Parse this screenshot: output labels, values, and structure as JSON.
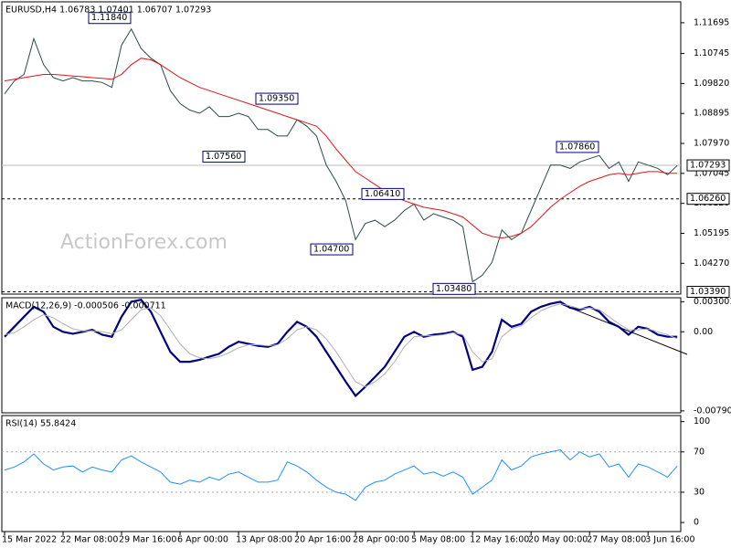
{
  "chart_data": [
    {
      "type": "line",
      "title": "EURUSD,H4 1.06783 1.07401 1.06707 1.07293",
      "watermark": "ActionForex.com",
      "categories": [
        "15 Mar 2022",
        null,
        null,
        null,
        null,
        null,
        "22 Mar 08:00",
        null,
        null,
        null,
        null,
        null,
        "29 Mar 16:00",
        null,
        null,
        null,
        null,
        null,
        "6 Apr 00:00",
        null,
        null,
        null,
        null,
        null,
        "13 Apr 08:00",
        null,
        null,
        null,
        null,
        null,
        "20 Apr 16:00",
        null,
        null,
        null,
        null,
        null,
        "28 Apr 00:00",
        null,
        null,
        null,
        null,
        null,
        "5 May 08:00",
        null,
        null,
        null,
        null,
        null,
        "12 May 16:00",
        null,
        null,
        null,
        null,
        null,
        "20 May 00:00",
        null,
        null,
        null,
        null,
        null,
        "27 May 08:00",
        null,
        null,
        null,
        null,
        null,
        "3 Jun 16:00",
        null,
        null,
        null
      ],
      "series": [
        {
          "color": "#2b4a4a",
          "values": [
            1.095,
            1.099,
            1.101,
            1.112,
            1.104,
            1.1,
            1.099,
            1.1,
            1.099,
            1.099,
            1.0985,
            1.097,
            1.11,
            1.115,
            1.109,
            1.106,
            1.104,
            1.096,
            1.092,
            1.09,
            1.089,
            1.091,
            1.088,
            1.088,
            1.089,
            1.088,
            1.084,
            1.084,
            1.082,
            1.082,
            1.087,
            1.085,
            1.082,
            1.073,
            1.068,
            1.062,
            1.05,
            1.055,
            1.056,
            1.054,
            1.056,
            1.059,
            1.061,
            1.056,
            1.058,
            1.057,
            1.056,
            1.054,
            1.037,
            1.039,
            1.043,
            1.053,
            1.05,
            1.052,
            1.059,
            1.066,
            1.073,
            1.073,
            1.072,
            1.074,
            1.075,
            1.076,
            1.072,
            1.074,
            1.068,
            1.074,
            1.073,
            1.072,
            1.07,
            1.0729
          ]
        },
        {
          "color": "#e0151b",
          "values": [
            1.099,
            1.0995,
            1.1,
            1.1005,
            1.101,
            1.101,
            1.1008,
            1.1005,
            1.1003,
            1.1,
            1.0998,
            1.0995,
            1.101,
            1.104,
            1.106,
            1.1055,
            1.104,
            1.102,
            1.1,
            1.0985,
            1.097,
            1.096,
            1.095,
            1.094,
            1.093,
            1.092,
            1.091,
            1.09,
            1.089,
            1.088,
            1.087,
            1.086,
            1.085,
            1.082,
            1.078,
            1.0745,
            1.071,
            1.069,
            1.067,
            1.065,
            1.0635,
            1.062,
            1.061,
            1.06,
            1.0595,
            1.059,
            1.058,
            1.057,
            1.0545,
            1.052,
            1.051,
            1.0505,
            1.051,
            1.052,
            1.054,
            1.057,
            1.06,
            1.0625,
            1.0645,
            1.0665,
            1.068,
            1.069,
            1.07,
            1.0705,
            1.07,
            1.0705,
            1.071,
            1.071,
            1.0705,
            1.0705
          ]
        }
      ],
      "ylim": [
        1.0332,
        1.1234
      ],
      "yticks": [
        1.11695,
        1.10745,
        {
          "value": 1.0982,
          "label": "1.09820"
        },
        1.08895,
        {
          "value": 1.0797,
          "label": "1.07970"
        },
        1.07045,
        {
          "value": 1.0612,
          "label": "1.06120"
        },
        1.05195,
        {
          "value": 1.0427,
          "label": "1.04270"
        }
      ],
      "levels": [
        {
          "value": 1.0626,
          "label": "1.06260"
        },
        {
          "value": 1.0339,
          "label": "1.03390"
        }
      ],
      "last_price": {
        "value": 1.07293,
        "label": "1.07293"
      },
      "annotations": [
        {
          "value": 1.1184,
          "label": "1.11840"
        },
        {
          "value": 1.0935,
          "label": "1.09350"
        },
        {
          "value": 1.0756,
          "label": "1.07560"
        },
        {
          "value": 1.0641,
          "label": "1.06410"
        },
        {
          "value": 1.047,
          "label": "1.04700"
        },
        {
          "value": 1.0348,
          "label": "1.03480"
        },
        {
          "value": 1.0786,
          "label": "1.07860"
        }
      ]
    },
    {
      "type": "line",
      "title": "MACD(12,26,9) -0.000506 -0.000711",
      "series": [
        {
          "color": "#000080",
          "values": [
            -0.0005,
            0.0005,
            0.0015,
            0.0025,
            0.002,
            0.0005,
            0,
            -0.0002,
            0,
            0.0002,
            -0.0003,
            -0.0005,
            0.0015,
            0.003,
            0.0032,
            0.002,
            0,
            -0.002,
            -0.003,
            -0.003,
            -0.0028,
            -0.0025,
            -0.0022,
            -0.0015,
            -0.001,
            -0.0012,
            -0.0014,
            -0.0015,
            -0.0012,
            0,
            0.001,
            0.0005,
            -0.0005,
            -0.002,
            -0.0035,
            -0.005,
            -0.0064,
            -0.0055,
            -0.0045,
            -0.0035,
            -0.002,
            -0.0005,
            0,
            -0.0005,
            -0.0003,
            -0.0002,
            0,
            -0.0005,
            -0.0038,
            -0.0035,
            -0.002,
            0.0012,
            0.0005,
            0.0008,
            0.002,
            0.0025,
            0.0028,
            0.003,
            0.0024,
            0.0022,
            0.0025,
            0.002,
            0.001,
            0.0005,
            -0.0003,
            0.0005,
            0.0003,
            -0.0003,
            -0.0005,
            -0.0005
          ]
        },
        {
          "color": "#b0b0b0",
          "values": [
            -0.0003,
            -0.0001,
            0.0005,
            0.0012,
            0.0017,
            0.0014,
            0.0008,
            0.0003,
            0.0001,
            0.0001,
            0,
            -0.0002,
            0.0002,
            0.0012,
            0.0022,
            0.0024,
            0.0016,
            0.0002,
            -0.0012,
            -0.0022,
            -0.0026,
            -0.0027,
            -0.0025,
            -0.0021,
            -0.0016,
            -0.0013,
            -0.0013,
            -0.0014,
            -0.0013,
            -0.0007,
            0.0002,
            0.0005,
            0.0002,
            -0.0007,
            -0.002,
            -0.0035,
            -0.005,
            -0.0055,
            -0.005,
            -0.0042,
            -0.003,
            -0.0015,
            -0.0005,
            -0.0004,
            -0.0004,
            -0.0003,
            -0.0001,
            -0.0003,
            -0.002,
            -0.003,
            -0.0027,
            -0.0005,
            0.0003,
            0.0006,
            0.0014,
            0.0021,
            0.0025,
            0.0028,
            0.0026,
            0.0023,
            0.0024,
            0.0022,
            0.0015,
            0.0008,
            0.0002,
            0.0002,
            0.0003,
            0,
            -0.0003,
            -0.0007
          ]
        }
      ],
      "ylim": [
        -0.0081,
        0.0034
      ],
      "yticks": [
        0.0030012,
        {
          "value": 0,
          "label": "0.00"
        },
        -0.007907
      ]
    },
    {
      "type": "line",
      "title": "RSI(14) 55.8424",
      "series": [
        {
          "color": "#1e90ff",
          "values": [
            52,
            55,
            60,
            68,
            58,
            52,
            55,
            56,
            50,
            55,
            52,
            50,
            62,
            66,
            60,
            55,
            50,
            40,
            38,
            42,
            40,
            45,
            42,
            48,
            50,
            45,
            40,
            40,
            42,
            60,
            56,
            50,
            42,
            35,
            30,
            28,
            22,
            35,
            40,
            42,
            48,
            52,
            56,
            48,
            50,
            46,
            50,
            45,
            28,
            35,
            42,
            62,
            52,
            56,
            65,
            68,
            70,
            72,
            62,
            70,
            65,
            68,
            55,
            58,
            45,
            58,
            55,
            50,
            45,
            56
          ]
        }
      ],
      "ylim": [
        -9,
        106
      ],
      "yticks": [
        100,
        70,
        30,
        0
      ],
      "levels": [
        70,
        30
      ]
    }
  ]
}
